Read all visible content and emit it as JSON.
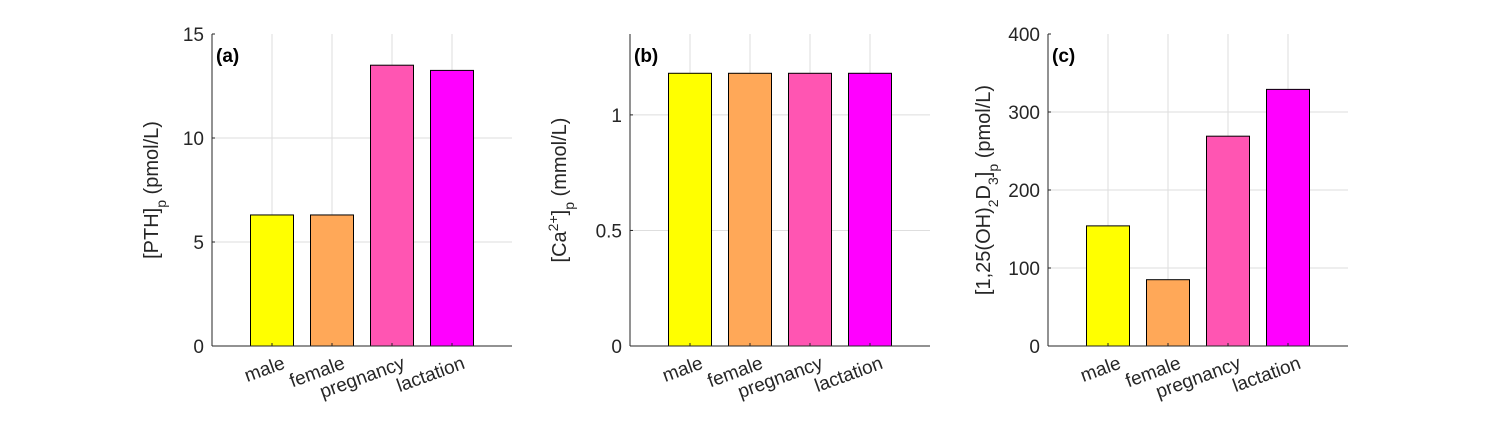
{
  "chart_data": [
    {
      "type": "bar",
      "panel": "(a)",
      "categories": [
        "male",
        "female",
        "pregnancy",
        "lactation"
      ],
      "values": [
        6.3,
        6.3,
        13.5,
        13.25
      ],
      "colors": [
        "#ffff00",
        "#ffa858",
        "#ff55b2",
        "#ff00ff"
      ],
      "ylim": [
        0,
        15
      ],
      "yticks": [
        0,
        5,
        10,
        15
      ],
      "ylabel": {
        "base": "[PTH]",
        "sub": "p",
        "unit": " (pmol/L)"
      },
      "grid": true
    },
    {
      "type": "bar",
      "panel": "(b)",
      "categories": [
        "male",
        "female",
        "pregnancy",
        "lactation"
      ],
      "values": [
        1.18,
        1.18,
        1.18,
        1.18
      ],
      "colors": [
        "#ffff00",
        "#ffa858",
        "#ff55b2",
        "#ff00ff"
      ],
      "ylim": [
        0,
        1.35
      ],
      "yticks": [
        0,
        0.5,
        1
      ],
      "ylabel": {
        "base": "[Ca",
        "sup": "2+",
        "close": "]",
        "sub": "p",
        "unit": " (mmol/L)"
      },
      "grid": true
    },
    {
      "type": "bar",
      "panel": "(c)",
      "categories": [
        "male",
        "female",
        "pregnancy",
        "lactation"
      ],
      "values": [
        154,
        85,
        269,
        329
      ],
      "colors": [
        "#ffff00",
        "#ffa858",
        "#ff55b2",
        "#ff00ff"
      ],
      "ylim": [
        0,
        400
      ],
      "yticks": [
        0,
        100,
        200,
        300,
        400
      ],
      "ylabel": {
        "base": "[1,25(OH)",
        "sub1": "2",
        "mid": "D",
        "sub2": "3",
        "close": "]",
        "sub": "p",
        "unit": " (pmol/L)"
      },
      "grid": true
    }
  ]
}
